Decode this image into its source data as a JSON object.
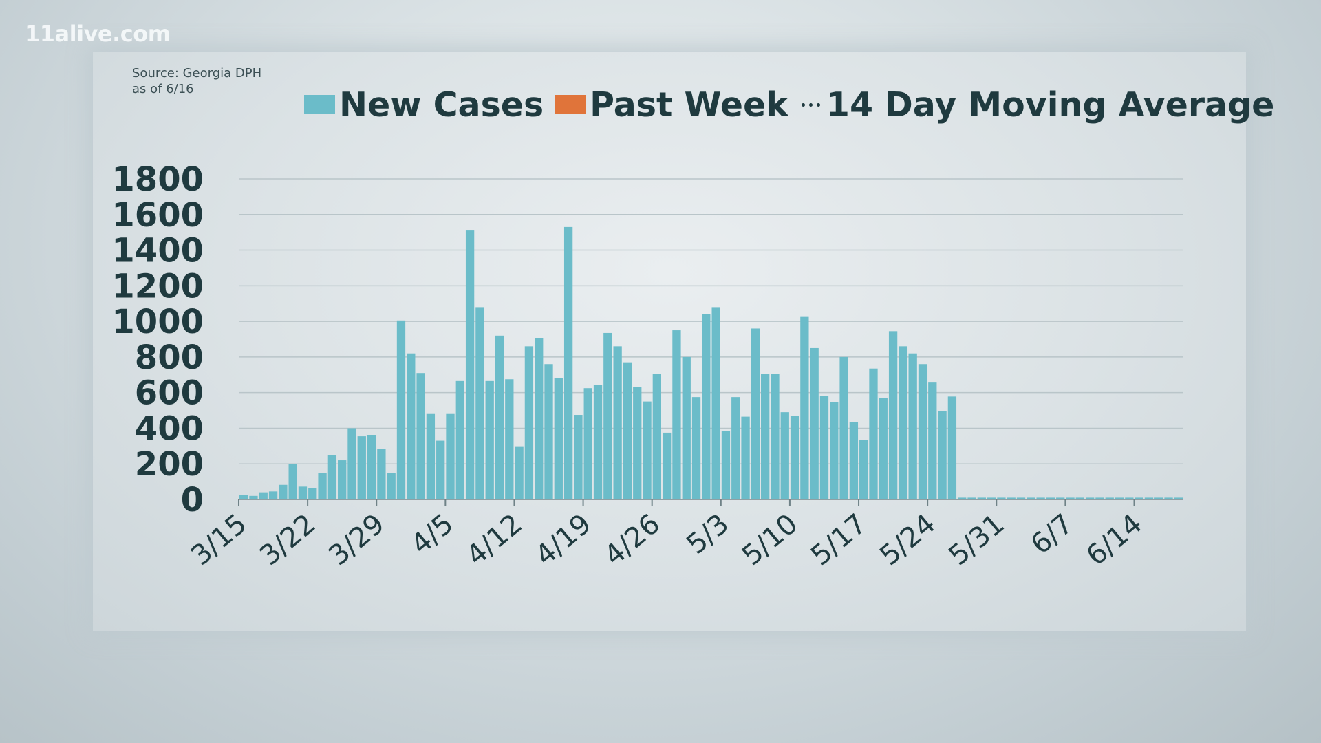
{
  "branding": {
    "logo_text": "11alive.com"
  },
  "source": {
    "line1": "Source: Georgia DPH",
    "line2": "as of 6/16"
  },
  "legend": [
    {
      "label": "New Cases",
      "color": "#6bbcc9",
      "marker": "swatch"
    },
    {
      "label": "Past Week",
      "color": "#e0743a",
      "marker": "swatch"
    },
    {
      "label": "14 Day Moving Average",
      "color": "#1f3a3f",
      "marker": "dots"
    }
  ],
  "chart_data": {
    "type": "bar",
    "title": "",
    "xlabel": "",
    "ylabel": "",
    "ylim": [
      0,
      1800
    ],
    "yticks": [
      0,
      200,
      400,
      600,
      800,
      1000,
      1200,
      1400,
      1600,
      1800
    ],
    "grid": true,
    "legend_position": "top-right",
    "x_start": "3/15",
    "x_end": "6/16",
    "xtick_labels": [
      "3/15",
      "3/22",
      "3/29",
      "4/5",
      "4/12",
      "4/19",
      "4/26",
      "5/3",
      "5/10",
      "5/17",
      "5/24",
      "5/31",
      "6/7",
      "6/14"
    ],
    "series": [
      {
        "name": "New Cases",
        "color": "#6bbcc9",
        "values": [
          27,
          20,
          40,
          45,
          82,
          200,
          72,
          62,
          150,
          250,
          220,
          400,
          355,
          360,
          285,
          150,
          1005,
          820,
          710,
          480,
          330,
          480,
          665,
          1510,
          1080,
          665,
          920,
          675,
          295,
          860,
          905,
          760,
          680,
          1530,
          475,
          625,
          645,
          935,
          860,
          770,
          630,
          550,
          705,
          375,
          950,
          800,
          575,
          1040,
          1080,
          385,
          575,
          465,
          960,
          705,
          705,
          490,
          470,
          1025,
          850,
          580,
          545,
          800,
          435,
          335,
          735,
          570,
          945,
          860,
          820,
          760,
          660,
          495,
          578,
          10,
          10,
          10,
          10,
          10,
          10,
          10,
          10,
          10,
          10,
          10,
          10,
          10,
          10,
          10,
          10,
          10,
          10,
          10,
          10,
          10,
          10,
          10
        ]
      }
    ]
  }
}
